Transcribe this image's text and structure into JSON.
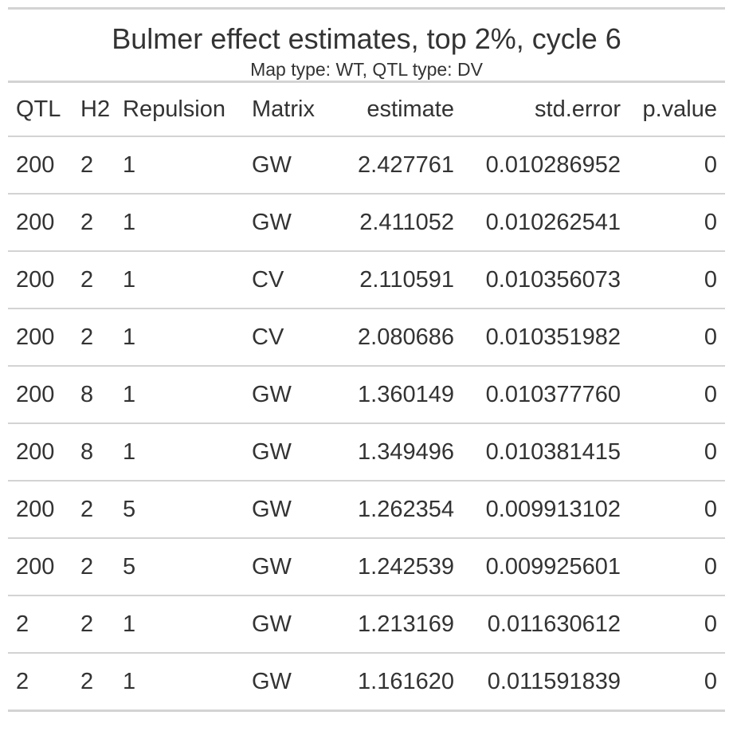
{
  "title": "Bulmer effect estimates, top 2%, cycle 6",
  "subtitle": "Map type: WT, QTL type: DV",
  "columns": [
    "QTL",
    "H2",
    "Repulsion",
    "Matrix",
    "estimate",
    "std.error",
    "p.value"
  ],
  "rows": [
    [
      "200",
      "2",
      "1",
      "GW",
      "2.427761",
      "0.010286952",
      "0"
    ],
    [
      "200",
      "2",
      "1",
      "GW",
      "2.411052",
      "0.010262541",
      "0"
    ],
    [
      "200",
      "2",
      "1",
      "CV",
      "2.110591",
      "0.010356073",
      "0"
    ],
    [
      "200",
      "2",
      "1",
      "CV",
      "2.080686",
      "0.010351982",
      "0"
    ],
    [
      "200",
      "8",
      "1",
      "GW",
      "1.360149",
      "0.010377760",
      "0"
    ],
    [
      "200",
      "8",
      "1",
      "GW",
      "1.349496",
      "0.010381415",
      "0"
    ],
    [
      "200",
      "2",
      "5",
      "GW",
      "1.262354",
      "0.009913102",
      "0"
    ],
    [
      "200",
      "2",
      "5",
      "GW",
      "1.242539",
      "0.009925601",
      "0"
    ],
    [
      "2",
      "2",
      "1",
      "GW",
      "1.213169",
      "0.011630612",
      "0"
    ],
    [
      "2",
      "2",
      "1",
      "GW",
      "1.161620",
      "0.011591839",
      "0"
    ]
  ]
}
